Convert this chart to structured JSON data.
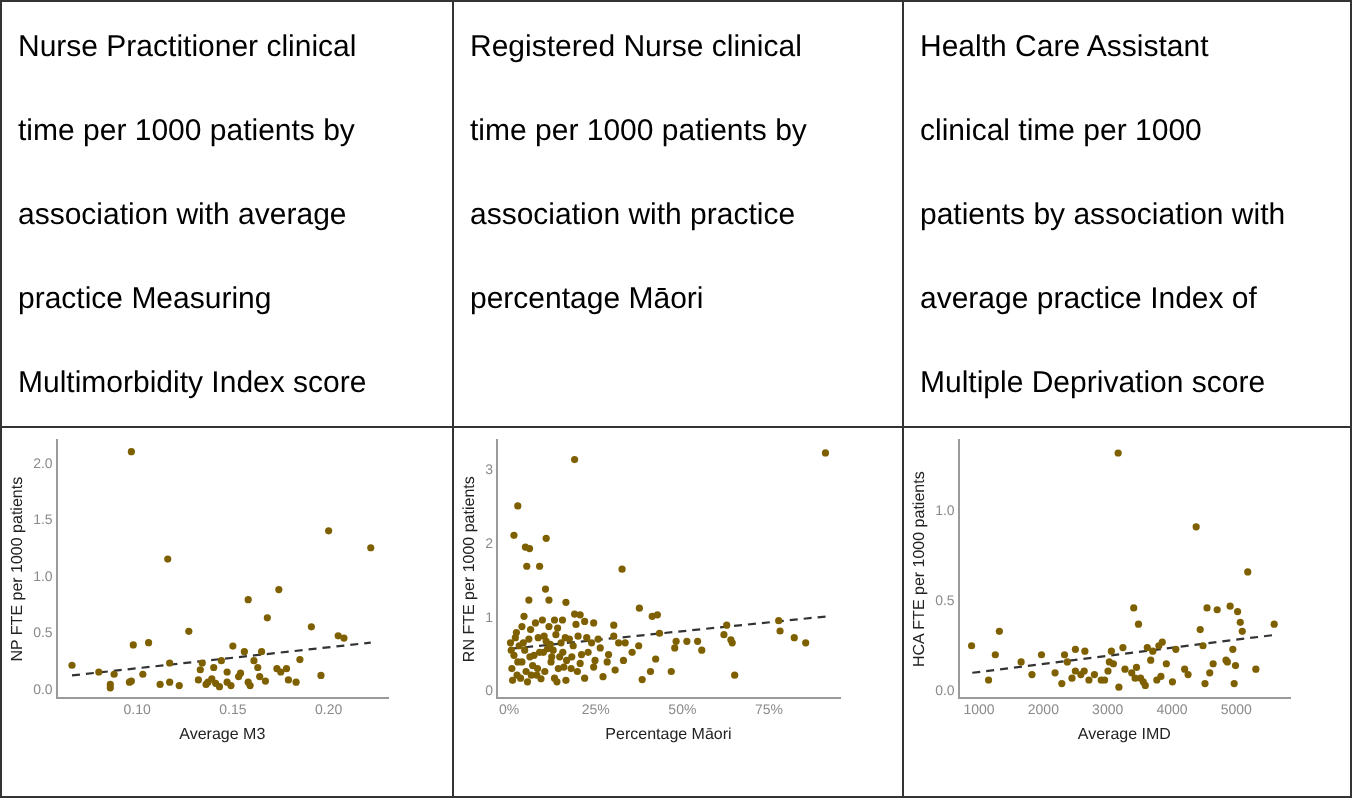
{
  "chart_data": [
    {
      "type": "scatter",
      "title": "Nurse Practitioner clinical time per 1000 patients by association with average practice Measuring Multimorbidity Index score",
      "xlabel": "Average M3",
      "ylabel": "NP FTE per 1000 patients",
      "xlim": [
        0.058,
        0.231
      ],
      "ylim": [
        -0.07,
        2.21
      ],
      "xticks": [
        {
          "value": 0.1,
          "label": "0.10"
        },
        {
          "value": 0.15,
          "label": "0.15"
        },
        {
          "value": 0.2,
          "label": "0.20"
        }
      ],
      "yticks": [
        {
          "value": 0,
          "label": "0.0"
        },
        {
          "value": 0.5,
          "label": "0.5"
        },
        {
          "value": 1,
          "label": "1.0"
        },
        {
          "value": 1.5,
          "label": "1.5"
        },
        {
          "value": 2,
          "label": "2.0"
        }
      ],
      "series": [
        {
          "color": "#7f6000",
          "marker": "circle",
          "x": [
            0.066,
            0.08,
            0.086,
            0.086,
            0.088,
            0.096,
            0.097,
            0.098,
            0.103,
            0.106,
            0.112,
            0.116,
            0.117,
            0.117,
            0.122,
            0.127,
            0.132,
            0.133,
            0.134,
            0.136,
            0.137,
            0.139,
            0.14,
            0.141,
            0.143,
            0.144,
            0.147,
            0.147,
            0.149,
            0.15,
            0.153,
            0.154,
            0.156,
            0.158,
            0.158,
            0.159,
            0.161,
            0.163,
            0.164,
            0.165,
            0.167,
            0.168,
            0.173,
            0.174,
            0.175,
            0.178,
            0.179,
            0.183,
            0.185,
            0.191,
            0.196,
            0.2,
            0.205,
            0.208,
            0.222,
            0.097
          ],
          "values": [
            0.22,
            0.16,
            0.02,
            0.05,
            0.14,
            0.07,
            0.08,
            0.4,
            0.14,
            0.42,
            0.05,
            1.16,
            0.24,
            0.07,
            0.04,
            0.52,
            0.09,
            0.18,
            0.24,
            0.05,
            0.07,
            0.1,
            0.2,
            0.06,
            0.03,
            0.26,
            0.07,
            0.16,
            0.04,
            0.39,
            0.12,
            0.15,
            0.34,
            0.8,
            0.07,
            0.04,
            0.26,
            0.2,
            0.12,
            0.34,
            0.08,
            0.64,
            0.19,
            0.89,
            0.16,
            0.19,
            0.09,
            0.07,
            0.27,
            0.56,
            0.13,
            1.41,
            0.48,
            0.46,
            1.26,
            2.11
          ]
        },
        {
          "type": "line",
          "color": "#333333",
          "line_style": "dashed",
          "marker": "none",
          "x": [
            0.066,
            0.222
          ],
          "values": [
            0.13,
            0.42
          ]
        }
      ]
    },
    {
      "type": "scatter",
      "title": "Registered Nurse clinical time per 1000 patients by association with practice percentage Māori",
      "xlabel": "Percentage Māori",
      "ylabel": "RN FTE per 1000 patients",
      "xlim": [
        -3.5,
        95.5
      ],
      "ylim": [
        -0.09,
        3.41
      ],
      "xticks": [
        {
          "value": 0,
          "label": "0%"
        },
        {
          "value": 25,
          "label": "25%"
        },
        {
          "value": 50,
          "label": "50%"
        },
        {
          "value": 75,
          "label": "75%"
        }
      ],
      "yticks": [
        0,
        1,
        2,
        3
      ],
      "series": [
        {
          "color": "#7f6000",
          "marker": "circle",
          "x": [
            18.9,
            91.3,
            2.5,
            1.4,
            4.7,
            5.9,
            10.7,
            5.1,
            8.8,
            32.6,
            10.5,
            5.7,
            11.5,
            16.4,
            37.6,
            41.3,
            42.8,
            43.4,
            18.9,
            20.5,
            21.8,
            24.4,
            30.2,
            62.8,
            77.8,
            78.2,
            82.3,
            85.6,
            62.0,
            64.0,
            64.4,
            65.1,
            55.6,
            54.4,
            51.3,
            48.2,
            47.8,
            46.8,
            42.3,
            40.8,
            38.4,
            37.4,
            35.5,
            33.5,
            31.6,
            30.2,
            28.7,
            27.1,
            26.3,
            24.8,
            23.8,
            21.8,
            22.8,
            20.9,
            19.9,
            17.9,
            16.4,
            15.5,
            15.0,
            14.0,
            13.1,
            12.1,
            11.1,
            10.1,
            9.2,
            8.2,
            7.2,
            6.2,
            5.3,
            4.3,
            3.7,
            2.9,
            2.3,
            1.4,
            0.8,
            0.4,
            3.3,
            4.9,
            6.8,
            8.8,
            10.7,
            12.7,
            14.6,
            16.6,
            18.5,
            20.5,
            22.4,
            24.4,
            1.8,
            3.7,
            5.7,
            7.6,
            9.6,
            11.5,
            13.5,
            15.4,
            17.4,
            19.3,
            1.0,
            2.5,
            4.5,
            6.4,
            8.4,
            10.3,
            12.3,
            14.2,
            16.2,
            18.1,
            0.6,
            2.1,
            4.1,
            6.0,
            8.0,
            9.9,
            11.9,
            13.8,
            15.8,
            19.7,
            13.1,
            25.7,
            28.3,
            30.6,
            33.0
          ],
          "values": [
            3.15,
            3.24,
            2.52,
            2.12,
            1.96,
            1.94,
            2.08,
            1.7,
            1.7,
            1.66,
            1.39,
            1.24,
            1.24,
            1.21,
            1.13,
            1.02,
            1.04,
            0.79,
            1.05,
            1.04,
            0.95,
            0.93,
            0.9,
            0.9,
            0.96,
            0.82,
            0.73,
            0.66,
            0.77,
            0.7,
            0.66,
            0.22,
            0.56,
            0.68,
            0.68,
            0.68,
            0.59,
            0.27,
            0.44,
            0.27,
            0.16,
            0.62,
            0.53,
            0.66,
            0.66,
            0.75,
            0.5,
            0.2,
            0.59,
            0.42,
            0.66,
            0.18,
            0.53,
            0.5,
            0.75,
            0.31,
            0.15,
            0.53,
            0.66,
            0.86,
            0.18,
            0.4,
            0.58,
            0.75,
            0.17,
            0.31,
            0.49,
            0.84,
            0.13,
            1.02,
            0.4,
            0.62,
            0.22,
            0.49,
            0.31,
            0.66,
            0.18,
            0.27,
            0.35,
            0.53,
            0.68,
            0.56,
            0.47,
            0.42,
            0.62,
            0.38,
            0.73,
            0.33,
            0.73,
            0.88,
            0.71,
            0.93,
            0.97,
            0.88,
            0.77,
            0.97,
            0.71,
            0.91,
            0.15,
            0.4,
            0.56,
            0.22,
            0.73,
            0.27,
            0.47,
            0.31,
            0.73,
            0.47,
            0.56,
            0.8,
            0.66,
            0.47,
            0.22,
            0.53,
            0.64,
            0.13,
            0.33,
            0.27,
            0.97,
            0.71,
            0.4,
            0.29,
            0.42
          ]
        },
        {
          "type": "line",
          "color": "#333333",
          "line_style": "dashed",
          "marker": "none",
          "x": [
            0.6,
            92
          ],
          "values": [
            0.58,
            1.02
          ]
        }
      ]
    },
    {
      "type": "scatter",
      "title": "Health Care Assistant clinical time per 1000 patients by association with average practice Index of Multiple Deprivation score",
      "xlabel": "Average IMD",
      "ylabel": "HCA FTE per 1000 patients",
      "xlim": [
        683,
        5835
      ],
      "ylim": [
        -0.04,
        1.39
      ],
      "xticks": [
        1000,
        2000,
        3000,
        4000,
        5000
      ],
      "yticks": [
        {
          "value": 0,
          "label": "0.0"
        },
        {
          "value": 0.5,
          "label": "0.5"
        },
        {
          "value": 1,
          "label": "1.0"
        }
      ],
      "series": [
        {
          "color": "#7f6000",
          "marker": "circle",
          "x": [
            3163,
            884,
            1148,
            1253,
            1316,
            1654,
            1823,
            1971,
            2182,
            2287,
            2329,
            2372,
            2445,
            2498,
            2498,
            2583,
            2646,
            2635,
            2709,
            2794,
            2899,
            2952,
            3005,
            3026,
            3058,
            3089,
            3174,
            3237,
            3269,
            3374,
            3405,
            3427,
            3448,
            3479,
            3511,
            3553,
            3585,
            3616,
            3669,
            3701,
            3764,
            3796,
            3828,
            3849,
            3912,
            4007,
            4060,
            4197,
            4250,
            4376,
            4439,
            4482,
            4513,
            4545,
            4587,
            4640,
            4703,
            4840,
            4861,
            4904,
            4946,
            4967,
            4988,
            5020,
            5062,
            5093,
            5178,
            5304,
            5589
          ],
          "values": [
            1.32,
            0.25,
            0.06,
            0.2,
            0.33,
            0.16,
            0.09,
            0.2,
            0.1,
            0.04,
            0.2,
            0.16,
            0.07,
            0.23,
            0.11,
            0.09,
            0.22,
            0.11,
            0.06,
            0.09,
            0.06,
            0.06,
            0.11,
            0.16,
            0.22,
            0.15,
            0.02,
            0.24,
            0.12,
            0.1,
            0.46,
            0.07,
            0.13,
            0.37,
            0.07,
            0.05,
            0.03,
            0.24,
            0.17,
            0.22,
            0.06,
            0.25,
            0.08,
            0.27,
            0.15,
            0.05,
            0.23,
            0.12,
            0.09,
            0.91,
            0.34,
            0.25,
            0.04,
            0.46,
            0.1,
            0.15,
            0.45,
            0.17,
            0.16,
            0.47,
            0.23,
            0.04,
            0.14,
            0.44,
            0.38,
            0.33,
            0.66,
            0.12,
            0.37
          ]
        },
        {
          "type": "line",
          "color": "#333333",
          "line_style": "dashed",
          "marker": "none",
          "x": [
            895,
            5589
          ],
          "values": [
            0.1,
            0.31
          ]
        }
      ]
    }
  ]
}
